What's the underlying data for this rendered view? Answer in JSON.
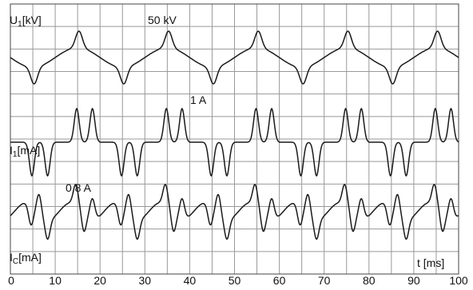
{
  "colors": {
    "grid": "#999999",
    "trace": "#1a1a1a",
    "frame": "#444444"
  },
  "chart_data": {
    "type": "line",
    "grid": true,
    "xlim": [
      0,
      100
    ],
    "x_tick_labels": [
      "0",
      "10",
      "20",
      "30",
      "40",
      "50",
      "60",
      "70",
      "80",
      "90",
      "100"
    ],
    "xlabel": "t [ms]",
    "traces": [
      {
        "label_main": "U",
        "label_sub": "1",
        "label_unit": "[kV]",
        "scale": "50 kV"
      },
      {
        "label_main": "I",
        "label_sub": "1",
        "label_unit": "[mA]",
        "scale": "1 A"
      },
      {
        "label_main": "I",
        "label_sub": "C",
        "label_unit": "[mA]",
        "scale": "0,8 A"
      }
    ]
  }
}
